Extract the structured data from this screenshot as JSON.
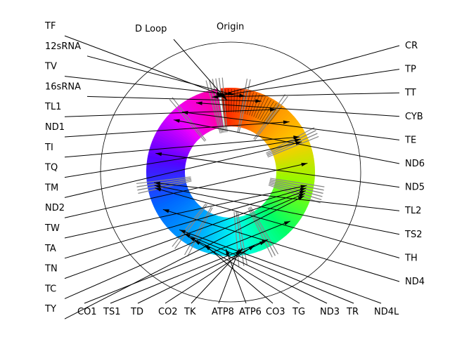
{
  "annotations": {
    "origin": "Origin",
    "dloop": "D Loop"
  },
  "genes": [
    {
      "name": "TF",
      "start": -7.0,
      "end": -5.0
    },
    {
      "name": "12sRNA",
      "start": -5.0,
      "end": 10.0
    },
    {
      "name": "TV",
      "start": 10.0,
      "end": 12.0
    },
    {
      "name": "16sRNA",
      "start": 12.0,
      "end": 35.0
    },
    {
      "name": "TL1",
      "start": 35.0,
      "end": 37.0
    },
    {
      "name": "ND1",
      "start": 37.0,
      "end": 62.0
    },
    {
      "name": "TI",
      "start": 62.0,
      "end": 64.0
    },
    {
      "name": "TQ",
      "start": 64.0,
      "end": 66.0
    },
    {
      "name": "TM",
      "start": 66.0,
      "end": 68.0
    },
    {
      "name": "ND2",
      "start": 68.0,
      "end": 99.0
    },
    {
      "name": "TW",
      "start": 99.0,
      "end": 101.0
    },
    {
      "name": "TA",
      "start": 101.0,
      "end": 103.0
    },
    {
      "name": "TN",
      "start": 103.0,
      "end": 105.0
    },
    {
      "name": "TC",
      "start": 105.0,
      "end": 107.0
    },
    {
      "name": "TY",
      "start": 107.0,
      "end": 109.0
    },
    {
      "name": "CO1",
      "start": 109.0,
      "end": 150.0
    },
    {
      "name": "TS1",
      "start": 150.0,
      "end": 152.0
    },
    {
      "name": "TD",
      "start": 152.0,
      "end": 154.0
    },
    {
      "name": "CO2",
      "start": 154.0,
      "end": 170.0
    },
    {
      "name": "TK",
      "start": 170.0,
      "end": 172.0
    },
    {
      "name": "ATP8",
      "start": 172.0,
      "end": 175.0
    },
    {
      "name": "ATP6",
      "start": 175.0,
      "end": 192.0
    },
    {
      "name": "CO3",
      "start": 192.0,
      "end": 207.0
    },
    {
      "name": "TG",
      "start": 207.0,
      "end": 209.0
    },
    {
      "name": "ND3",
      "start": 209.0,
      "end": 216.0
    },
    {
      "name": "TR",
      "start": 216.0,
      "end": 218.0
    },
    {
      "name": "ND4L",
      "start": 218.0,
      "end": 225.0
    },
    {
      "name": "ND4",
      "start": 225.0,
      "end": 257.0
    },
    {
      "name": "TH",
      "start": 257.0,
      "end": 259.0
    },
    {
      "name": "TS2",
      "start": 259.0,
      "end": 261.0
    },
    {
      "name": "TL2",
      "start": 261.0,
      "end": 263.0
    },
    {
      "name": "ND5",
      "start": 263.0,
      "end": 305.0
    },
    {
      "name": "ND6",
      "start": 305.0,
      "end": 320.0
    },
    {
      "name": "TE",
      "start": 320.0,
      "end": 322.0
    },
    {
      "name": "CYB",
      "start": 322.0,
      "end": 345.0
    },
    {
      "name": "TT",
      "start": 345.0,
      "end": 347.0
    },
    {
      "name": "TP",
      "start": 347.0,
      "end": 349.0
    },
    {
      "name": "CR",
      "start": 349.0,
      "end": 351.0
    }
  ],
  "colors": {
    "ring_stops": [
      "#ff2200",
      "#ff8800",
      "#ffcc00",
      "#88ff00",
      "#00ff66",
      "#00ffee",
      "#00aaff",
      "#0066ff",
      "#5500ff",
      "#ee00ff",
      "#ff0099"
    ],
    "tick": "#888888",
    "outline": "#000000"
  }
}
